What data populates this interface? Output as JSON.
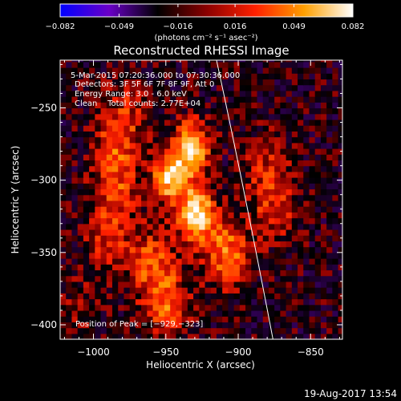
{
  "colorbar": {
    "tick_labels": [
      "−0.082",
      "−0.049",
      "−0.016",
      "0.016",
      "0.049",
      "0.082"
    ],
    "tick_values": [
      -0.082,
      -0.049,
      -0.016,
      0.016,
      0.049,
      0.082
    ],
    "range": [
      -0.082,
      0.082
    ],
    "units": "(photons cm⁻² s⁻¹ asec⁻²)",
    "colors": [
      "#0000ff",
      "#6a00c8",
      "#000000",
      "#8a0000",
      "#ff2000",
      "#ffa000",
      "#ffffff"
    ]
  },
  "plot": {
    "title": "Reconstructed RHESSI Image",
    "info_lines": [
      "5-Mar-2015 07:20:36.000 to 07:30:36.000",
      "Detectors: 3F 5F 6F 7F 8F 9F, Att 0",
      "Energy Range: 3.0 - 6.0 keV",
      "Clean    Total counts: 2.77E+04"
    ],
    "peak_label": "Position of Peak = [−929,−323]",
    "xlabel": "Heliocentric X (arcsec)",
    "ylabel": "Heliocentric Y (arcsec)",
    "x_tick_labels": [
      "−1000",
      "−950",
      "−900",
      "−850"
    ],
    "y_tick_labels": [
      "−250",
      "−300",
      "−350",
      "−400"
    ]
  },
  "chart_data": {
    "type": "heatmap",
    "title": "Reconstructed RHESSI Image",
    "xlabel": "Heliocentric X (arcsec)",
    "ylabel": "Heliocentric Y (arcsec)",
    "xlim": [
      -1023,
      -828
    ],
    "ylim": [
      -410,
      -217
    ],
    "x_ticks": [
      -1000,
      -950,
      -900,
      -850
    ],
    "y_ticks": [
      -250,
      -300,
      -350,
      -400
    ],
    "colorbar_range": [
      -0.082,
      0.082
    ],
    "peak": [
      -929,
      -323
    ],
    "limb_curve_x": [
      -915,
      -897,
      -876
    ],
    "limb_curve_y": [
      -217,
      -300,
      -410
    ],
    "sources": [
      {
        "x": -929,
        "y": -323,
        "intensity": 0.08
      },
      {
        "x": -947,
        "y": -297,
        "intensity": 0.07
      },
      {
        "x": -932,
        "y": -277,
        "intensity": 0.072
      },
      {
        "x": -908,
        "y": -350,
        "intensity": 0.05
      },
      {
        "x": -950,
        "y": -385,
        "intensity": 0.042
      },
      {
        "x": -985,
        "y": -275,
        "intensity": 0.032
      },
      {
        "x": -985,
        "y": -305,
        "intensity": 0.03
      },
      {
        "x": -990,
        "y": -340,
        "intensity": 0.028
      },
      {
        "x": -960,
        "y": -355,
        "intensity": 0.036
      },
      {
        "x": -875,
        "y": -320,
        "intensity": 0.028
      },
      {
        "x": -880,
        "y": -290,
        "intensity": 0.024
      },
      {
        "x": -975,
        "y": -250,
        "intensity": 0.02
      },
      {
        "x": -1010,
        "y": -390,
        "intensity": 0.015
      }
    ]
  },
  "footer": {
    "timestamp": "19-Aug-2017 13:54"
  }
}
